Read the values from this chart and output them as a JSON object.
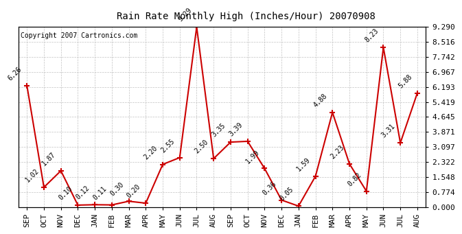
{
  "title": "Rain Rate Monthly High (Inches/Hour) 20070908",
  "copyright": "Copyright 2007 Cartronics.com",
  "categories": [
    "SEP",
    "OCT",
    "NOV",
    "DEC",
    "JAN",
    "FEB",
    "MAR",
    "APR",
    "MAY",
    "JUN",
    "JUL",
    "AUG",
    "SEP",
    "OCT",
    "NOV",
    "DEC",
    "JAN",
    "FEB",
    "MAR",
    "APR",
    "MAY",
    "JUN",
    "JUL",
    "AUG"
  ],
  "values": [
    6.26,
    1.02,
    1.87,
    0.1,
    0.12,
    0.11,
    0.3,
    0.2,
    2.2,
    2.55,
    9.29,
    2.5,
    3.35,
    3.39,
    1.99,
    0.36,
    0.05,
    1.59,
    4.88,
    2.23,
    0.82,
    8.23,
    3.31,
    5.88
  ],
  "line_color": "#cc0000",
  "marker_color": "#cc0000",
  "bg_color": "#ffffff",
  "grid_color": "#bbbbbb",
  "yticks": [
    0.0,
    0.774,
    1.548,
    2.322,
    3.097,
    3.871,
    4.645,
    5.419,
    6.193,
    6.967,
    7.742,
    8.516,
    9.29
  ],
  "ymax": 9.29,
  "ymin": 0.0,
  "label_values": [
    "6.26",
    "1.02",
    "1.87",
    "0.10",
    "0.12",
    "0.11",
    "0.30",
    "0.20",
    "2.20",
    "2.55",
    "9.29",
    "2.50",
    "3.35",
    "3.39",
    "1.99",
    "0.36",
    "0.05",
    "1.59",
    "4.88",
    "2.23",
    "0.82",
    "8.23",
    "3.31",
    "5.88"
  ]
}
